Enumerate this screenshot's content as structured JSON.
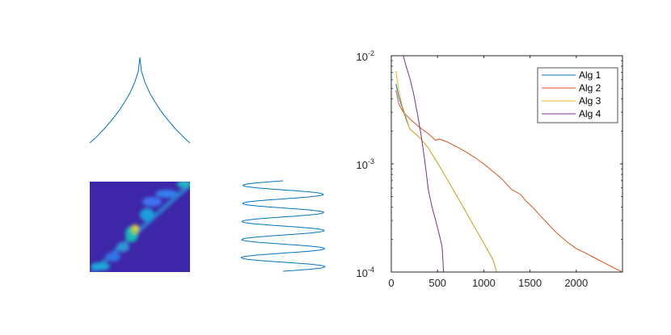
{
  "chart_data": [
    {
      "type": "line",
      "description_panel": "cusp",
      "x": [
        -1,
        -0.9,
        -0.8,
        -0.7,
        -0.6,
        -0.5,
        -0.4,
        -0.3,
        -0.2,
        -0.1,
        -0.03,
        0,
        0.03,
        0.1,
        0.2,
        0.3,
        0.4,
        0.5,
        0.6,
        0.7,
        0.8,
        0.9,
        1
      ],
      "y": [
        0,
        0.05,
        0.11,
        0.17,
        0.24,
        0.31,
        0.39,
        0.48,
        0.58,
        0.71,
        0.84,
        1,
        0.84,
        0.71,
        0.58,
        0.48,
        0.39,
        0.31,
        0.24,
        0.17,
        0.11,
        0.05,
        0
      ],
      "series_color": "#0072BD",
      "axes_visible": false
    },
    {
      "type": "heatmap",
      "description_panel": "image",
      "colormap": "parula",
      "background_color": "#3E26A8",
      "axes_visible": false
    },
    {
      "type": "line",
      "description_panel": "helix",
      "turns": 5,
      "series_color": "#0072BD",
      "axes_visible": false
    },
    {
      "type": "line",
      "xlim": [
        0,
        2500
      ],
      "ylim": [
        0.0001,
        0.01
      ],
      "yscale": "log",
      "x_ticks": [
        "0",
        "500",
        "1000",
        "1500",
        "2000"
      ],
      "y_ticks": [
        "10",
        "10",
        "10"
      ],
      "y_tick_exponents": [
        "-4",
        "-3",
        "-2"
      ],
      "legend_position": "top-right",
      "grid": false,
      "series": [
        {
          "name": "Alg 1",
          "color": "#0072BD",
          "x": [
            50,
            80,
            120,
            160,
            200,
            260,
            320,
            400,
            500,
            600,
            700,
            800,
            900,
            1000,
            1100,
            1140
          ],
          "y": [
            0.0055,
            0.0042,
            0.0033,
            0.0026,
            0.0021,
            0.0019,
            0.0017,
            0.0014,
            0.00102,
            0.00073,
            0.00052,
            0.00037,
            0.00026,
            0.000185,
            0.00013,
            0.0001
          ]
        },
        {
          "name": "Alg 2",
          "color": "#D95319",
          "x": [
            50,
            80,
            120,
            200,
            300,
            400,
            480,
            520,
            600,
            700,
            800,
            900,
            1000,
            1100,
            1200,
            1300,
            1400,
            1450,
            1500,
            1550,
            1600,
            1700,
            1800,
            1900,
            2000,
            2100,
            2200,
            2300,
            2400,
            2500
          ],
          "y": [
            0.0048,
            0.0036,
            0.0031,
            0.0026,
            0.0022,
            0.0019,
            0.00165,
            0.0017,
            0.0016,
            0.00145,
            0.0013,
            0.00115,
            0.001,
            0.00085,
            0.00072,
            0.00058,
            0.00052,
            0.00046,
            0.00042,
            0.00038,
            0.00034,
            0.000275,
            0.000225,
            0.00019,
            0.000165,
            0.00015,
            0.000135,
            0.000122,
            0.00011,
            0.0001
          ]
        },
        {
          "name": "Alg 3",
          "color": "#EDB120",
          "x": [
            50,
            80,
            120,
            160,
            200,
            260,
            320,
            400,
            500,
            600,
            700,
            800,
            900,
            1000,
            1100,
            1140
          ],
          "y": [
            0.0072,
            0.0048,
            0.0034,
            0.0027,
            0.0021,
            0.0019,
            0.0017,
            0.0014,
            0.00102,
            0.00073,
            0.00052,
            0.00037,
            0.00026,
            0.000185,
            0.00013,
            0.0001
          ]
        },
        {
          "name": "Alg 4",
          "color": "#7E2F8E",
          "x": [
            130,
            160,
            200,
            240,
            280,
            320,
            360,
            400,
            440,
            480,
            520,
            550,
            560,
            565
          ],
          "y": [
            0.01,
            0.008,
            0.0062,
            0.0045,
            0.003,
            0.0019,
            0.0011,
            0.00058,
            0.0004,
            0.0003,
            0.00022,
            0.00017,
            0.00012,
            0.0001
          ]
        }
      ]
    }
  ]
}
